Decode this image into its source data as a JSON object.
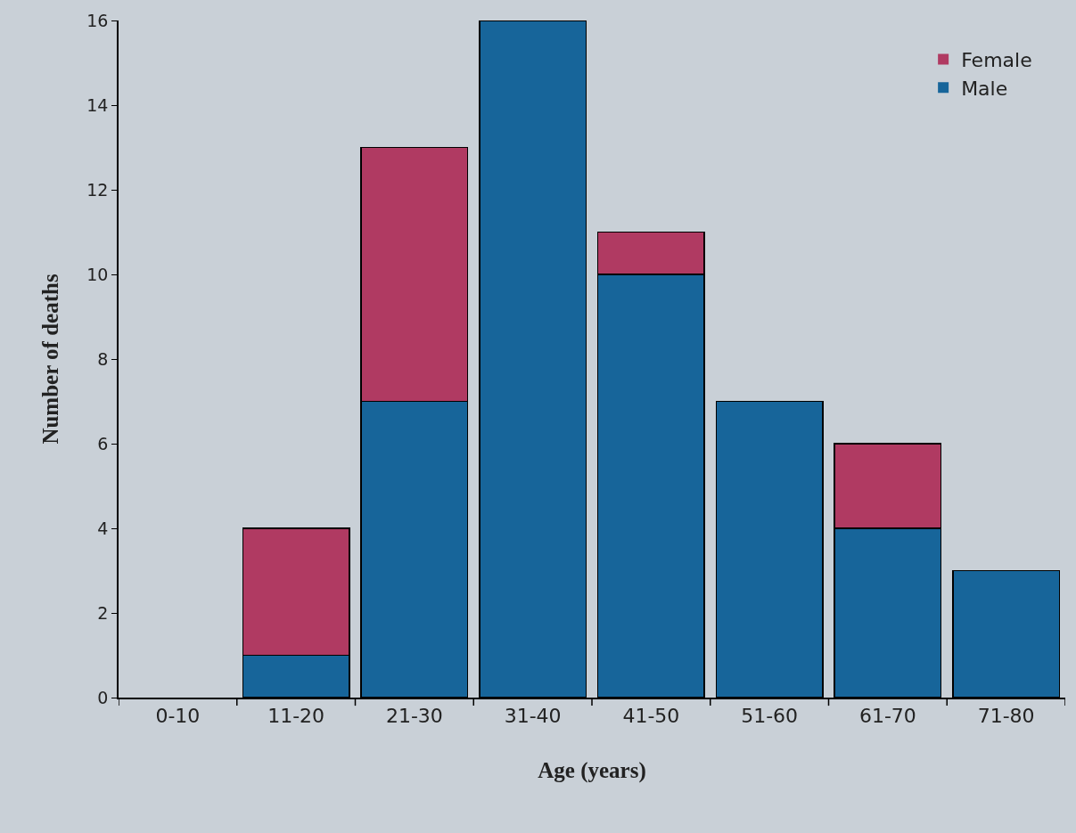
{
  "chart_data": {
    "type": "bar",
    "stacked": true,
    "xlabel": "Age (years)",
    "ylabel": "Number of deaths",
    "categories": [
      "0-10",
      "11-20",
      "21-30",
      "31-40",
      "41-50",
      "51-60",
      "61-70",
      "71-80"
    ],
    "series": [
      {
        "name": "Male",
        "color": "#17659a",
        "values": [
          0,
          1,
          7,
          16,
          10,
          7,
          4,
          3
        ]
      },
      {
        "name": "Female",
        "color": "#b03a62",
        "values": [
          0,
          3,
          6,
          0,
          1,
          0,
          2,
          0
        ]
      }
    ],
    "ylim": [
      0,
      16
    ],
    "yticks": [
      0,
      2,
      4,
      6,
      8,
      10,
      12,
      14,
      16
    ],
    "grid": false,
    "legend": "top right"
  }
}
